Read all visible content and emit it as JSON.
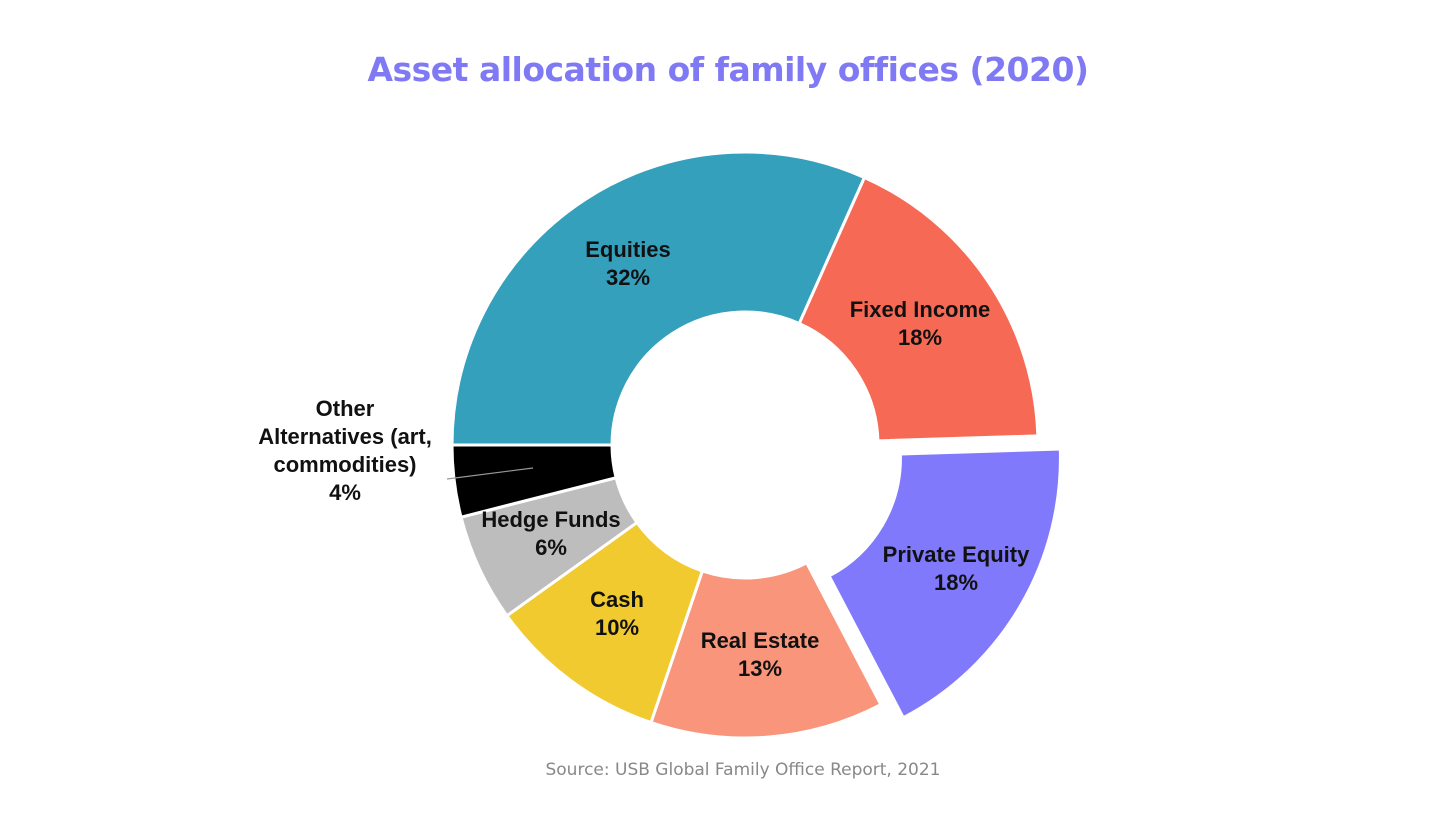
{
  "title": "Asset allocation of family offices (2020)",
  "source": "Source: USB Global Family Office Report, 2021",
  "chart_data": {
    "type": "pie",
    "variant": "donut",
    "title": "Asset allocation of family offices (2020)",
    "unit": "%",
    "categories": [
      "Equities",
      "Fixed Income",
      "Private Equity",
      "Real Estate",
      "Cash",
      "Hedge Funds",
      "Other Alternatives (art, commodities)"
    ],
    "values": [
      32,
      18,
      18,
      13,
      10,
      6,
      4
    ],
    "data_labels": [
      "32%",
      "18%",
      "18%",
      "13%",
      "10%",
      "6%",
      "4%"
    ],
    "colors": [
      "#34a0bc",
      "#f66a55",
      "#8079fb",
      "#f9957a",
      "#f0ca2e",
      "#bdbdbd",
      "#000000"
    ],
    "exploded": [
      "Private Equity"
    ],
    "legend": "none (labels on slices)"
  }
}
